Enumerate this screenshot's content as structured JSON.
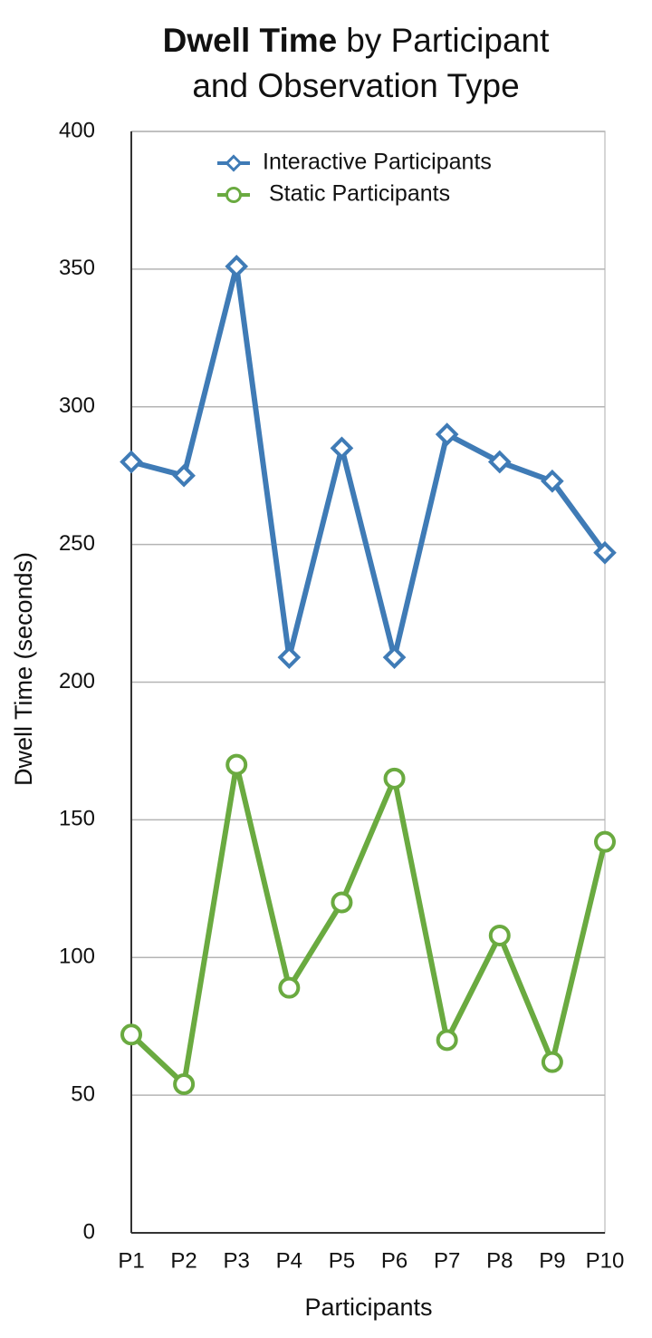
{
  "chart_data": {
    "type": "line",
    "title": [
      "Dwell Time",
      "by Participant",
      "and Observation Type"
    ],
    "x_label": "Participants",
    "y_label": "Dwell Time (seconds)",
    "categories": [
      "P1",
      "P2",
      "P3",
      "P4",
      "P5",
      "P6",
      "P7",
      "P8",
      "P9",
      "P10"
    ],
    "series": [
      {
        "name": "Interactive Participants",
        "color": "#3f7bb6",
        "marker": "diamond",
        "values": [
          280,
          275,
          351,
          209,
          285,
          209,
          290,
          280,
          273,
          247
        ]
      },
      {
        "name": "Static Participants",
        "color": "#6aaa40",
        "marker": "circle",
        "values": [
          72,
          54,
          170,
          89,
          120,
          165,
          70,
          108,
          62,
          142
        ]
      }
    ],
    "ylim": [
      0,
      400
    ],
    "yticks": [
      0,
      50,
      100,
      150,
      200,
      250,
      300,
      350,
      400
    ],
    "grid": true,
    "legend": "top"
  }
}
